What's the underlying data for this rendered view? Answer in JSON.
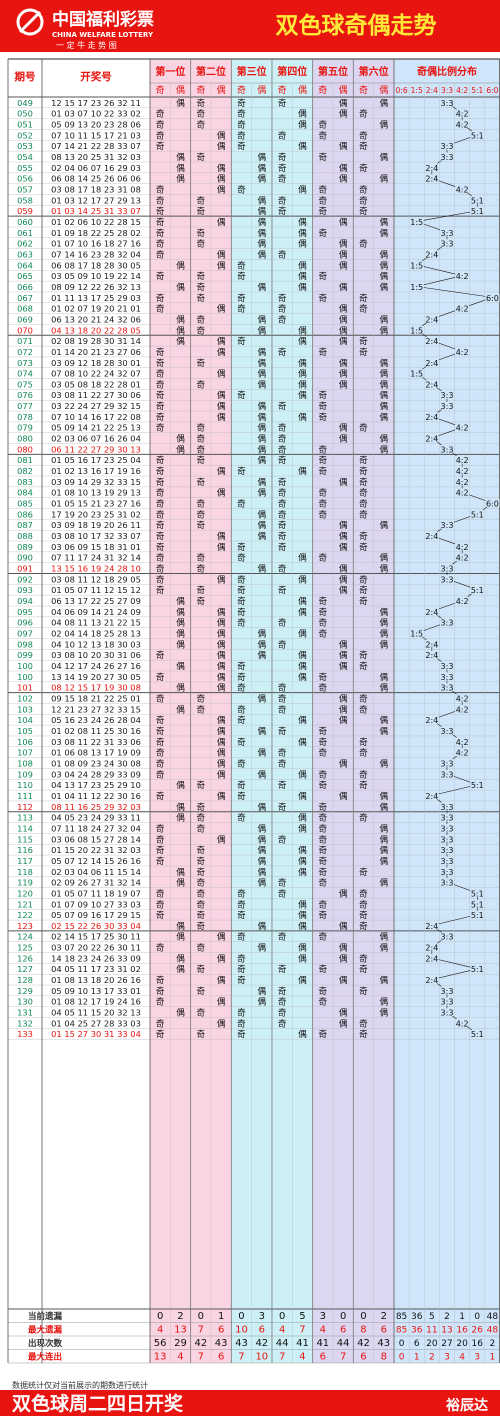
{
  "header": {
    "logo_cn": "中国福利彩票",
    "logo_en": "CHINA WELFARE LOTTERY",
    "logo_sub": "一 定 牛 走 势 图",
    "title": "双色球奇偶走势"
  },
  "columns": {
    "period": "期号",
    "draw": "开奖号",
    "positions": [
      "第一位",
      "第二位",
      "第三位",
      "第四位",
      "第五位",
      "第六位"
    ],
    "odd": "奇",
    "even": "偶",
    "ratio_title": "奇偶比例分布",
    "ratios": [
      "0:6",
      "1:5",
      "2:4",
      "3:3",
      "4:2",
      "5:1",
      "6:0"
    ]
  },
  "chart_data": {
    "type": "table",
    "rows": [
      {
        "p": "049",
        "n": "12 15 17 23 26 32 11",
        "r": "3:3"
      },
      {
        "p": "050",
        "n": "01 03 07 10 22 33 02",
        "r": "4:2"
      },
      {
        "p": "051",
        "n": "05 09 13 20 23 28 06",
        "r": "4:2"
      },
      {
        "p": "052",
        "n": "07 10 11 15 17 21 03",
        "r": "5:1"
      },
      {
        "p": "053",
        "n": "07 14 21 22 28 33 07",
        "r": "3:3"
      },
      {
        "p": "054",
        "n": "08 13 20 25 31 32 03",
        "r": "3:3"
      },
      {
        "p": "055",
        "n": "02 04 06 07 16 29 03",
        "r": "2:4"
      },
      {
        "p": "056",
        "n": "06 08 14 25 26 06 06",
        "r": "2:4"
      },
      {
        "p": "057",
        "n": "03 08 17 18 23 31 08",
        "r": "4:2"
      },
      {
        "p": "058",
        "n": "01 03 12 17 27 29 13",
        "r": "5:1"
      },
      {
        "p": "059",
        "n": "01 03 14 25 31 33 07",
        "r": "5:1"
      },
      {
        "p": "060",
        "n": "01 02 06 10 22 28 15",
        "r": "1:5"
      },
      {
        "p": "061",
        "n": "01 09 18 22 25 28 02",
        "r": "3:3"
      },
      {
        "p": "062",
        "n": "01 07 10 16 18 27 16",
        "r": "3:3"
      },
      {
        "p": "063",
        "n": "07 14 16 23 28 32 04",
        "r": "2:4"
      },
      {
        "p": "064",
        "n": "06 08 17 18 28 30 05",
        "r": "1:5"
      },
      {
        "p": "065",
        "n": "03 05 09 10 19 22 14",
        "r": "4:2"
      },
      {
        "p": "066",
        "n": "08 09 12 22 26 32 13",
        "r": "1:5"
      },
      {
        "p": "067",
        "n": "01 11 13 17 25 29 03",
        "r": "6:0"
      },
      {
        "p": "068",
        "n": "01 02 07 19 20 21 01",
        "r": "4:2"
      },
      {
        "p": "069",
        "n": "06 13 20 21 24 32 06",
        "r": "2:4"
      },
      {
        "p": "070",
        "n": "04 13 18 20 22 28 05",
        "r": "1:5"
      },
      {
        "p": "071",
        "n": "02 08 19 28 30 31 14",
        "r": "2:4"
      },
      {
        "p": "072",
        "n": "01 14 20 21 23 27 06",
        "r": "4:2"
      },
      {
        "p": "073",
        "n": "03 09 12 18 28 30 01",
        "r": "2:4"
      },
      {
        "p": "074",
        "n": "07 08 10 22 24 32 07",
        "r": "1:5"
      },
      {
        "p": "075",
        "n": "03 05 08 18 22 28 01",
        "r": "2:4"
      },
      {
        "p": "076",
        "n": "03 08 11 22 27 30 06",
        "r": "3:3"
      },
      {
        "p": "077",
        "n": "03 22 24 27 29 32 15",
        "r": "3:3"
      },
      {
        "p": "078",
        "n": "07 10 14 16 17 22 08",
        "r": "2:4"
      },
      {
        "p": "079",
        "n": "05 09 14 21 22 25 13",
        "r": "4:2"
      },
      {
        "p": "080",
        "n": "02 03 06 07 16 26 04",
        "r": "2:4"
      },
      {
        "p": "080",
        "n": "06 11 22 27 29 30 13",
        "r": "3:3"
      },
      {
        "p": "081",
        "n": "01 05 16 17 23 25 04",
        "r": "4:2"
      },
      {
        "p": "082",
        "n": "01 02 13 16 17 19 16",
        "r": "4:2"
      },
      {
        "p": "083",
        "n": "03 09 14 29 32 33 15",
        "r": "4:2"
      },
      {
        "p": "084",
        "n": "01 08 10 13 19 29 13",
        "r": "4:2"
      },
      {
        "p": "085",
        "n": "01 05 15 21 23 27 16",
        "r": "6:0"
      },
      {
        "p": "086",
        "n": "17 19 20 23 25 31 02",
        "r": "5:1"
      },
      {
        "p": "087",
        "n": "03 09 18 19 20 26 11",
        "r": "3:3"
      },
      {
        "p": "088",
        "n": "03 08 10 17 32 33 07",
        "r": "2:4"
      },
      {
        "p": "089",
        "n": "03 06 09 15 18 31 01",
        "r": "4:2"
      },
      {
        "p": "090",
        "n": "07 11 17 24 31 32 14",
        "r": "4:2"
      },
      {
        "p": "091",
        "n": "13 15 16 19 24 28 10",
        "r": "3:3"
      },
      {
        "p": "092",
        "n": "03 08 11 12 18 29 05",
        "r": "3:3"
      },
      {
        "p": "093",
        "n": "01 05 07 11 12 15 12",
        "r": "5:1"
      },
      {
        "p": "094",
        "n": "06 13 17 22 25 27 09",
        "r": "4:2"
      },
      {
        "p": "095",
        "n": "04 06 09 14 21 24 09",
        "r": "2:4"
      },
      {
        "p": "096",
        "n": "04 08 11 13 21 22 15",
        "r": "3:3"
      },
      {
        "p": "097",
        "n": "02 04 14 18 25 28 13",
        "r": "1:5"
      },
      {
        "p": "098",
        "n": "04 10 12 13 18 30 03",
        "r": "2:4"
      },
      {
        "p": "099",
        "n": "03 08 10 20 30 31 06",
        "r": "2:4"
      },
      {
        "p": "100",
        "n": "04 12 17 24 26 27 16",
        "r": "3:3"
      },
      {
        "p": "100",
        "n": "13 14 19 20 27 30 05",
        "r": "3:3"
      },
      {
        "p": "101",
        "n": "08 12 15 17 19 30 08",
        "r": "3:3"
      },
      {
        "p": "102",
        "n": "09 15 18 21 22 25 01",
        "r": "4:2"
      },
      {
        "p": "103",
        "n": "12 21 23 27 32 33 15",
        "r": "4:2"
      },
      {
        "p": "104",
        "n": "05 16 23 24 26 28 04",
        "r": "2:4"
      },
      {
        "p": "105",
        "n": "01 02 08 11 25 30 16",
        "r": "3:3"
      },
      {
        "p": "106",
        "n": "03 08 11 22 31 33 06",
        "r": "4:2"
      },
      {
        "p": "107",
        "n": "01 06 08 13 17 19 09",
        "r": "4:2"
      },
      {
        "p": "108",
        "n": "01 08 09 23 24 30 08",
        "r": "3:3"
      },
      {
        "p": "109",
        "n": "03 04 24 28 29 33 09",
        "r": "3:3"
      },
      {
        "p": "110",
        "n": "04 13 17 23 25 29 10",
        "r": "5:1"
      },
      {
        "p": "111",
        "n": "01 04 11 12 22 30 16",
        "r": "2:4"
      },
      {
        "p": "112",
        "n": "08 11 16 25 29 32 03",
        "r": "3:3"
      },
      {
        "p": "113",
        "n": "04 05 23 24 29 33 11",
        "r": "3:3"
      },
      {
        "p": "114",
        "n": "07 11 18 24 27 32 04",
        "r": "3:3"
      },
      {
        "p": "115",
        "n": "03 06 08 15 27 28 14",
        "r": "3:3"
      },
      {
        "p": "116",
        "n": "01 15 20 22 31 32 03",
        "r": "3:3"
      },
      {
        "p": "117",
        "n": "05 07 12 14 15 26 16",
        "r": "3:3"
      },
      {
        "p": "118",
        "n": "02 03 04 06 11 15 14",
        "r": "3:3"
      },
      {
        "p": "119",
        "n": "02 09 26 27 31 32 14",
        "r": "3:3"
      },
      {
        "p": "120",
        "n": "01 05 07 11 18 19 07",
        "r": "5:1"
      },
      {
        "p": "121",
        "n": "01 07 09 10 27 33 03",
        "r": "5:1"
      },
      {
        "p": "122",
        "n": "05 07 09 16 17 29 15",
        "r": "5:1"
      },
      {
        "p": "123",
        "n": "02 15 22 26 30 33 04",
        "r": "2:4"
      },
      {
        "p": "124",
        "n": "02 14 15 17 25 30 11",
        "r": "3:3"
      },
      {
        "p": "125",
        "n": "03 07 20 22 26 30 11",
        "r": "2:4"
      },
      {
        "p": "126",
        "n": "14 18 23 24 26 33 09",
        "r": "2:4"
      },
      {
        "p": "127",
        "n": "04 05 11 17 23 31 02",
        "r": "5:1"
      },
      {
        "p": "128",
        "n": "01 08 13 18 20 26 16",
        "r": "2:4"
      },
      {
        "p": "129",
        "n": "05 09 10 13 17 33 01",
        "r": "3:3"
      },
      {
        "p": "130",
        "n": "01 08 12 17 19 24 16",
        "r": "3:3"
      },
      {
        "p": "131",
        "n": "04 05 11 15 20 32 13",
        "r": "3:3"
      },
      {
        "p": "132",
        "n": "01 04 25 27 28 33 03",
        "r": "4:2"
      },
      {
        "p": "133",
        "n": "01 15 27 30 31 33 04",
        "r": "5:1"
      }
    ],
    "stats": [
      {
        "label": "当前遗漏",
        "style": "dark",
        "values": [
          "0",
          "2",
          "0",
          "1",
          "0",
          "3",
          "0",
          "5",
          "3",
          "0",
          "0",
          "2",
          "85",
          "36",
          "5",
          "2",
          "1",
          "0",
          "48"
        ]
      },
      {
        "label": "最大遗漏",
        "style": "red",
        "values": [
          "4",
          "13",
          "7",
          "6",
          "10",
          "6",
          "4",
          "7",
          "4",
          "6",
          "8",
          "6",
          "85",
          "36",
          "11",
          "13",
          "16",
          "26",
          "48"
        ]
      },
      {
        "label": "出现次数",
        "style": "dark",
        "values": [
          "56",
          "29",
          "42",
          "43",
          "43",
          "42",
          "44",
          "41",
          "41",
          "44",
          "42",
          "43",
          "0",
          "6",
          "20",
          "27",
          "20",
          "16",
          "2"
        ]
      },
      {
        "label": "最大连出",
        "style": "red",
        "values": [
          "13",
          "4",
          "7",
          "6",
          "7",
          "10",
          "7",
          "4",
          "6",
          "7",
          "6",
          "8",
          "0",
          "1",
          "2",
          "3",
          "4",
          "3",
          "1"
        ]
      }
    ]
  },
  "footer": {
    "title": "双色球周二四日开奖",
    "author": "裕辰达",
    "note": "数据统计仅对当前展示的期数进行统计"
  },
  "colors": {
    "red": "#e8140f",
    "green": "#0f8a55",
    "pink": "#f9d4e3",
    "cyan": "#cdf0f6",
    "lavender": "#ddd6f0",
    "blue": "#cfe6fa"
  }
}
